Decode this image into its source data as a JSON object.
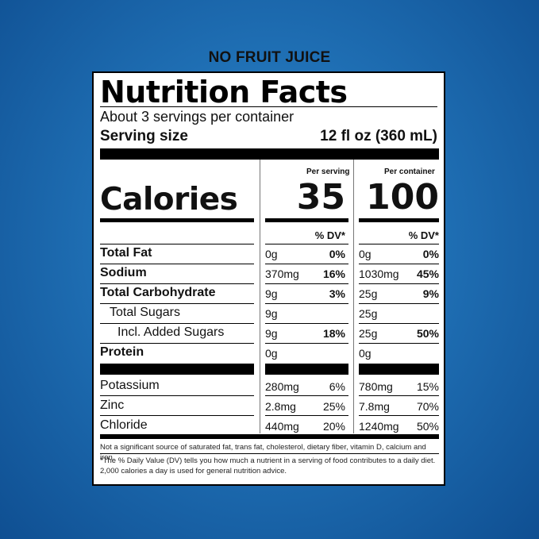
{
  "banner": "NO FRUIT JUICE",
  "label": {
    "title": "Nutrition Facts",
    "servings": "About 3 servings per container",
    "serving_size_label": "Serving size",
    "serving_size_value": "12 fl oz (360 mL)",
    "col_serving": "Per serving",
    "col_container": "Per container",
    "calories_label": "Calories",
    "calories_serving": "35",
    "calories_container": "100",
    "dv_header": "% DV*",
    "rows": [
      {
        "name": "Total Fat",
        "s_amt": "0g",
        "s_dv": "0%",
        "c_amt": "0g",
        "c_dv": "0%"
      },
      {
        "name": "Sodium",
        "s_amt": "370mg",
        "s_dv": "16%",
        "c_amt": "1030mg",
        "c_dv": "45%"
      },
      {
        "name": "Total Carbohydrate",
        "s_amt": "9g",
        "s_dv": "3%",
        "c_amt": "25g",
        "c_dv": "9%"
      },
      {
        "name": "Total Sugars",
        "s_amt": "9g",
        "s_dv": "",
        "c_amt": "25g",
        "c_dv": ""
      },
      {
        "name": "Incl. Added Sugars",
        "s_amt": "9g",
        "s_dv": "18%",
        "c_amt": "25g",
        "c_dv": "50%"
      },
      {
        "name": "Protein",
        "s_amt": "0g",
        "s_dv": "",
        "c_amt": "0g",
        "c_dv": ""
      }
    ],
    "minerals": [
      {
        "name": "Potassium",
        "s_amt": "280mg",
        "s_dv": "6%",
        "c_amt": "780mg",
        "c_dv": "15%"
      },
      {
        "name": "Zinc",
        "s_amt": "2.8mg",
        "s_dv": "25%",
        "c_amt": "7.8mg",
        "c_dv": "70%"
      },
      {
        "name": "Chloride",
        "s_amt": "440mg",
        "s_dv": "20%",
        "c_amt": "1240mg",
        "c_dv": "50%"
      }
    ],
    "footnote_1": "Not a significant source of saturated fat, trans fat, cholesterol, dietary fiber, vitamin D, calcium and iron.",
    "footnote_2": "*The % Daily Value (DV) tells you how much a nutrient in a serving of food contributes to a daily diet. 2,000 calories a day is used for general nutrition advice."
  }
}
